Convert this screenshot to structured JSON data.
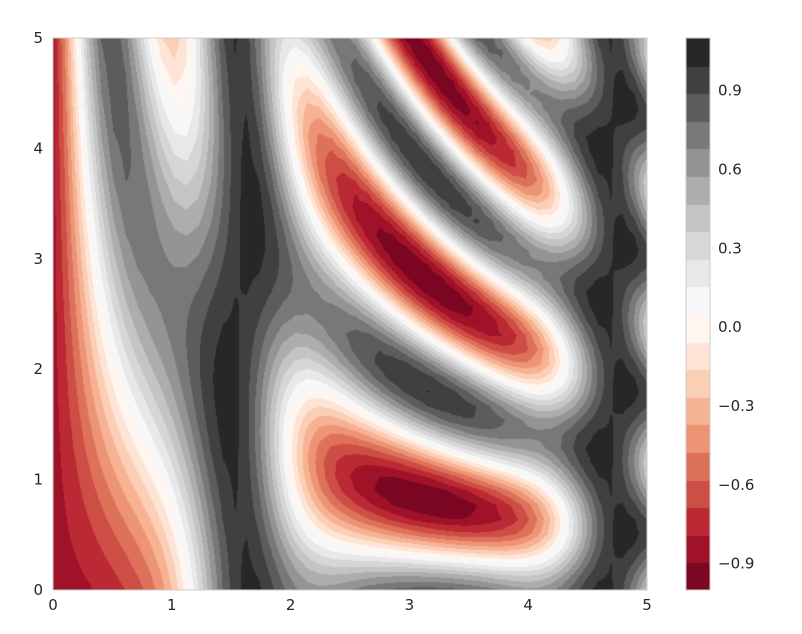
{
  "chart_data": {
    "type": "heatmap",
    "subtype": "filled-contour",
    "title": "",
    "xlabel": "",
    "ylabel": "",
    "xlim": [
      0,
      5
    ],
    "ylim": [
      0,
      5
    ],
    "x_ticks": [
      0,
      1,
      2,
      3,
      4,
      5
    ],
    "y_ticks": [
      0,
      1,
      2,
      3,
      4,
      5
    ],
    "x_tick_labels": [
      "0",
      "1",
      "2",
      "3",
      "4",
      "5"
    ],
    "y_tick_labels": [
      "0",
      "1",
      "2",
      "3",
      "4",
      "5"
    ],
    "z_function": "sin(x)^10 + cos(10 + y*x) * cos(x)",
    "grid_resolution": [
      50,
      40
    ],
    "levels": 20,
    "zlim": [
      -1.0,
      1.1
    ],
    "colormap": "RdGy",
    "colormap_colors": [
      "#67001f",
      "#b2182b",
      "#d6604d",
      "#f4a582",
      "#fddbc7",
      "#ffffff",
      "#e0e0e0",
      "#bababa",
      "#878787",
      "#4d4d4d",
      "#1a1a1a"
    ],
    "colorbar": {
      "position": "right",
      "ticks": [
        -0.9,
        -0.6,
        -0.3,
        0.0,
        0.3,
        0.6,
        0.9
      ],
      "tick_labels": [
        "−0.9",
        "−0.6",
        "−0.3",
        "0.0",
        "0.3",
        "0.6",
        "0.9"
      ]
    },
    "grid": false
  }
}
